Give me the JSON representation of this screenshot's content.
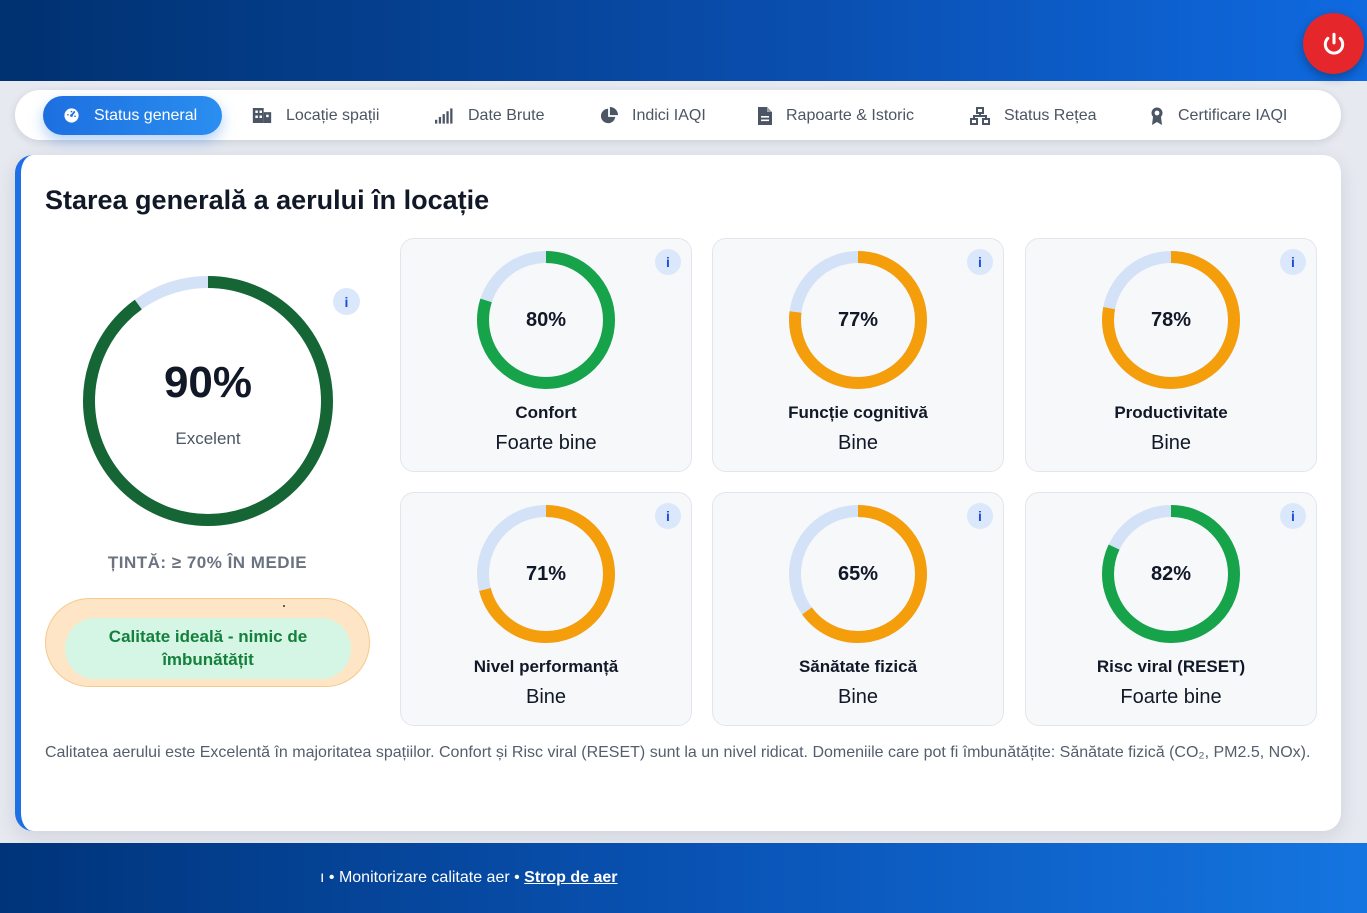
{
  "nav": {
    "tabs": [
      {
        "label": "Status general",
        "icon": "gauge-icon",
        "active": true
      },
      {
        "label": "Locație spații",
        "icon": "building-icon"
      },
      {
        "label": "Date Brute",
        "icon": "signal-bars-icon"
      },
      {
        "label": "Indici IAQI",
        "icon": "pie-chart-icon"
      },
      {
        "label": "Rapoarte & Istoric",
        "icon": "document-icon"
      },
      {
        "label": "Status Rețea",
        "icon": "network-icon"
      },
      {
        "label": "Certificare IAQI",
        "icon": "award-icon"
      }
    ]
  },
  "power_button": {
    "icon": "power-icon",
    "color": "#e5262a"
  },
  "main": {
    "title": "Starea generală a aerului în locație",
    "overall": {
      "value": "90%",
      "percent": 90,
      "label": "Excelent",
      "color": "#166534"
    },
    "target": "ȚINTĂ: ≥ 70% ÎN MEDIE",
    "recommendation": "Calitate ideală - nimic de îmbunătățit",
    "info_label": "i",
    "metrics": [
      {
        "value": "80%",
        "percent": 80,
        "name": "Confort",
        "status": "Foarte bine",
        "color": "#16a34a"
      },
      {
        "value": "77%",
        "percent": 77,
        "name": "Funcție cognitivă",
        "status": "Bine",
        "color": "#f59e0b"
      },
      {
        "value": "78%",
        "percent": 78,
        "name": "Productivitate",
        "status": "Bine",
        "color": "#f59e0b"
      },
      {
        "value": "71%",
        "percent": 71,
        "name": "Nivel performanță",
        "status": "Bine",
        "color": "#f59e0b"
      },
      {
        "value": "65%",
        "percent": 65,
        "name": "Sănătate fizică",
        "status": "Bine",
        "color": "#f59e0b"
      },
      {
        "value": "82%",
        "percent": 82,
        "name": "Risc viral (RESET)",
        "status": "Foarte bine",
        "color": "#16a34a"
      }
    ],
    "summary": "Calitatea aerului este Excelentă în majoritatea spațiilor. Confort și Risc viral (RESET) sunt la un nivel ridicat. Domeniile care pot fi îmbunătățite: Sănătate fizică (CO₂, PM2.5, NOx)."
  },
  "colors": {
    "track": "#d4e2f8",
    "accent": "#1f6fe6"
  },
  "footer": {
    "left_fragment": "ı • Monitorizare calitate aer • ",
    "link": "Strop de aer"
  }
}
